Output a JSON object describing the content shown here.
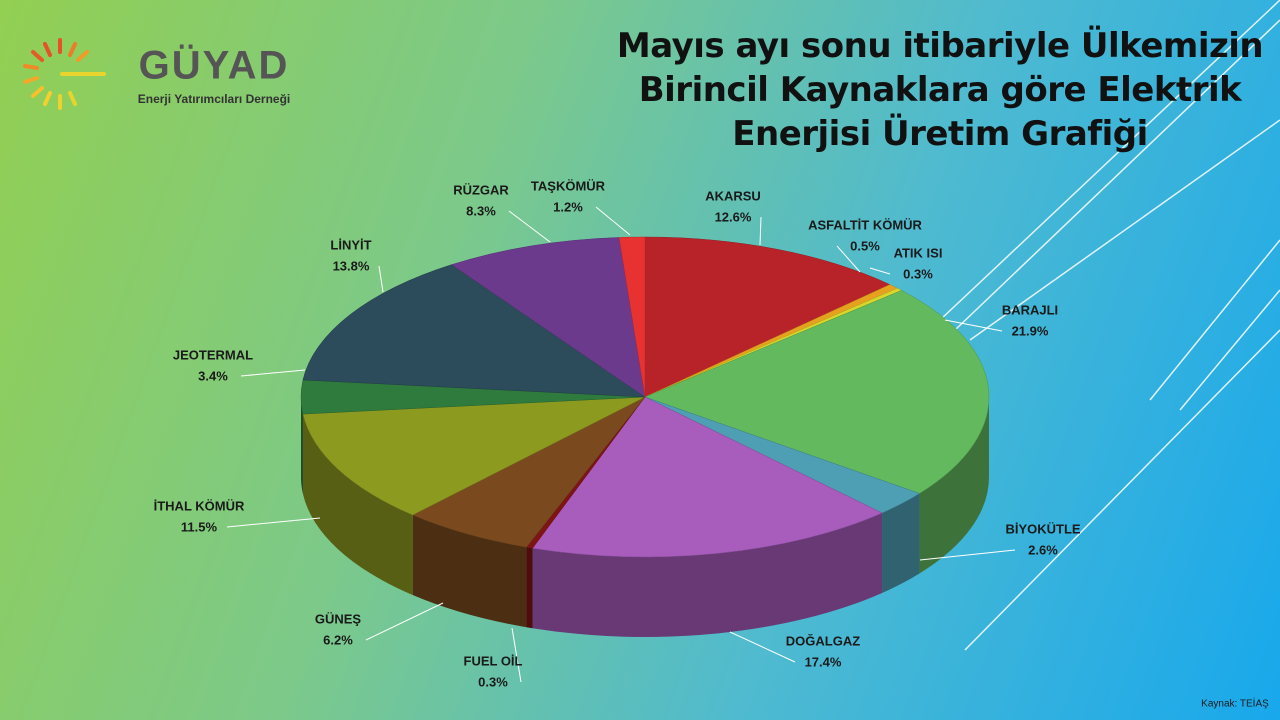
{
  "logo": {
    "name": "GÜYAD",
    "subtitle": "Enerji Yatırımcıları Derneği"
  },
  "source": "Kaynak: TEİAŞ",
  "chart_data": {
    "type": "pie",
    "title": "Mayıs ayı sonu itibariyle Ülkemizin\nBirincil Kaynaklara göre Elektrik\nEnerjisi Üretim Grafiği",
    "categories": [
      "AKARSU",
      "ASFALTİT KÖMÜR",
      "ATIK ISI",
      "BARAJLI",
      "BİYOKÜTLE",
      "DOĞALGAZ",
      "FUEL OİL",
      "GÜNEŞ",
      "İTHAL KÖMÜR",
      "JEOTERMAL",
      "LİNYİT",
      "RÜZGAR",
      "TAŞKÖMÜR"
    ],
    "values": [
      12.6,
      0.5,
      0.3,
      21.9,
      2.6,
      17.4,
      0.3,
      6.2,
      11.5,
      3.4,
      13.8,
      8.3,
      1.2
    ],
    "value_labels": [
      "12.6%",
      "0.5%",
      "0.3%",
      "21.9%",
      "2.6%",
      "17.4%",
      "0.3%",
      "6.2%",
      "11.5%",
      "3.4%",
      "13.8%",
      "8.3%",
      "1.2%"
    ],
    "colors": [
      "#b8232a",
      "#e6a21e",
      "#d8d62a",
      "#63b95e",
      "#4e9fb3",
      "#a85cbc",
      "#7e1414",
      "#7a4a1e",
      "#8d9a20",
      "#2f7a3d",
      "#2c4b5b",
      "#6c3a8d",
      "#e83232"
    ]
  }
}
